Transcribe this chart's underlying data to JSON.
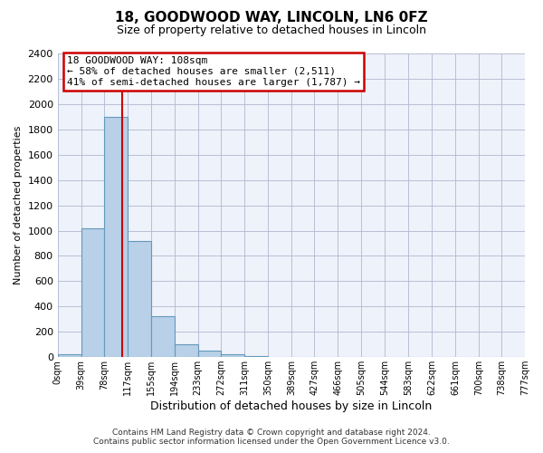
{
  "title": "18, GOODWOOD WAY, LINCOLN, LN6 0FZ",
  "subtitle": "Size of property relative to detached houses in Lincoln",
  "xlabel": "Distribution of detached houses by size in Lincoln",
  "ylabel": "Number of detached properties",
  "footer_line1": "Contains HM Land Registry data © Crown copyright and database right 2024.",
  "footer_line2": "Contains public sector information licensed under the Open Government Licence v3.0.",
  "annotation_line1": "18 GOODWOOD WAY: 108sqm",
  "annotation_line2": "← 58% of detached houses are smaller (2,511)",
  "annotation_line3": "41% of semi-detached houses are larger (1,787) →",
  "vline_x": 108,
  "bin_edges": [
    0,
    39,
    78,
    117,
    155,
    194,
    233,
    272,
    311,
    350,
    389,
    427,
    466,
    505,
    544,
    583,
    622,
    661,
    700,
    738,
    777
  ],
  "bin_heights": [
    20,
    1020,
    1900,
    920,
    320,
    105,
    50,
    20,
    5,
    0,
    0,
    0,
    0,
    0,
    0,
    0,
    0,
    0,
    0,
    0
  ],
  "bar_color": "#b8d0e8",
  "bar_edge_color": "#6699bb",
  "vline_color": "#cc0000",
  "ylim": [
    0,
    2400
  ],
  "background_color": "#ffffff",
  "plot_background": "#eef2fa",
  "grid_color": "#b0b8d0",
  "annotation_box_color": "#ffffff",
  "annotation_box_edge": "#cc0000",
  "yticks": [
    0,
    200,
    400,
    600,
    800,
    1000,
    1200,
    1400,
    1600,
    1800,
    2000,
    2200,
    2400
  ],
  "tick_labels": [
    "0sqm",
    "39sqm",
    "78sqm",
    "117sqm",
    "155sqm",
    "194sqm",
    "233sqm",
    "272sqm",
    "311sqm",
    "350sqm",
    "389sqm",
    "427sqm",
    "466sqm",
    "505sqm",
    "544sqm",
    "583sqm",
    "622sqm",
    "661sqm",
    "700sqm",
    "738sqm",
    "777sqm"
  ]
}
